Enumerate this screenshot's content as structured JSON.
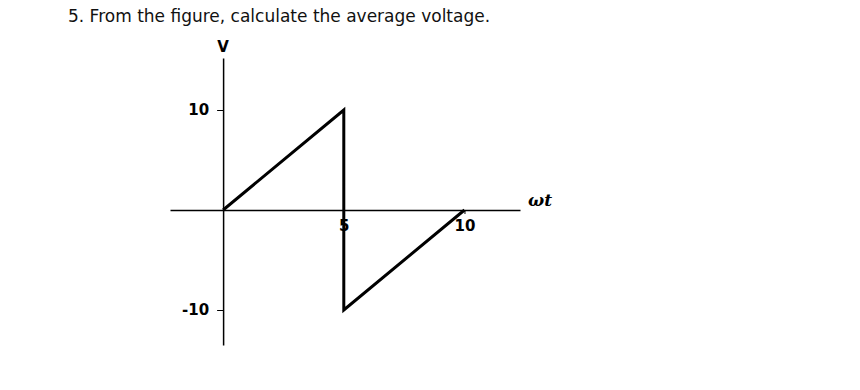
{
  "chart_data": {
    "type": "line",
    "title": "5. From the figure, calculate the average voltage.",
    "xlabel": "ωt",
    "ylabel": "V",
    "x": [
      0,
      5,
      5,
      10
    ],
    "values": [
      0,
      10,
      -10,
      0
    ],
    "color": "#000000",
    "xlim": [
      -2.2,
      12.3
    ],
    "ylim": [
      -13.5,
      15.2
    ],
    "xticks": [
      5,
      10
    ],
    "yticks": [
      10,
      -10
    ],
    "grid": false
  }
}
